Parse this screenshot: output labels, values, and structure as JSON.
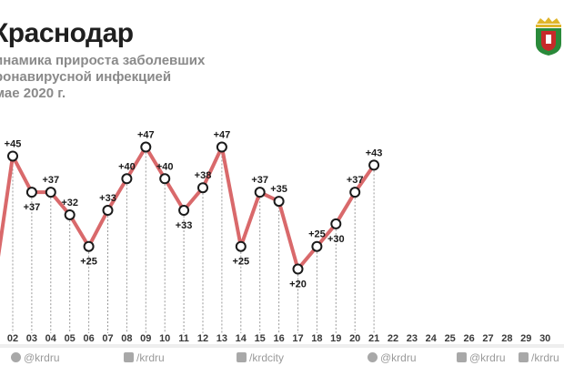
{
  "header": {
    "title": "Краснодар",
    "subtitle_lines": [
      "инамика прироста заболевших",
      "ронавирусной инфекцией",
      "мае 2020 г."
    ]
  },
  "chart_data": {
    "type": "line",
    "title": "Краснодар",
    "x_ticks": [
      "02",
      "03",
      "04",
      "05",
      "06",
      "07",
      "08",
      "09",
      "10",
      "11",
      "12",
      "13",
      "14",
      "15",
      "16",
      "17",
      "18",
      "19",
      "20",
      "21",
      "22",
      "23",
      "24",
      "25",
      "26",
      "27",
      "28",
      "29",
      "30"
    ],
    "x": [
      "02",
      "03",
      "04",
      "05",
      "06",
      "07",
      "08",
      "09",
      "10",
      "11",
      "12",
      "13",
      "14",
      "15",
      "16",
      "17",
      "18",
      "19",
      "20",
      "21"
    ],
    "values": [
      45,
      37,
      37,
      32,
      25,
      33,
      40,
      47,
      40,
      33,
      38,
      47,
      25,
      37,
      35,
      20,
      25,
      30,
      37,
      43
    ],
    "labels": [
      "+45",
      "+37",
      "+37",
      "+32",
      "+25",
      "+33",
      "+40",
      "+47",
      "+40",
      "+33",
      "+38",
      "+47",
      "+25",
      "+37",
      "+35",
      "+20",
      "+25",
      "+30",
      "+37",
      "+43"
    ],
    "label_pos": [
      "above",
      "below",
      "above",
      "above",
      "below",
      "above",
      "above",
      "above",
      "above",
      "below",
      "above",
      "above",
      "below",
      "above",
      "above",
      "below",
      "above",
      "below",
      "above",
      "above"
    ],
    "ylim": [
      0,
      60
    ],
    "grid": "vertical-dashed",
    "line_color": "#d9696b",
    "marker_fill": "#ffffff",
    "marker_stroke": "#1a1a1a"
  },
  "footer": {
    "items": [
      {
        "icon": "instagram-icon",
        "text": "@krdru"
      },
      {
        "icon": "vk-icon",
        "text": "/krdru"
      },
      {
        "icon": "facebook-icon",
        "text": "/krdcity"
      },
      {
        "icon": "instagram-icon",
        "text": "@krdru"
      },
      {
        "icon": "twitter-icon",
        "text": "@krdru"
      },
      {
        "icon": "ok-icon",
        "text": "/krdru"
      }
    ]
  },
  "colors": {
    "footer_bar": "#eeeeee",
    "axis_line": "#d9696b"
  }
}
